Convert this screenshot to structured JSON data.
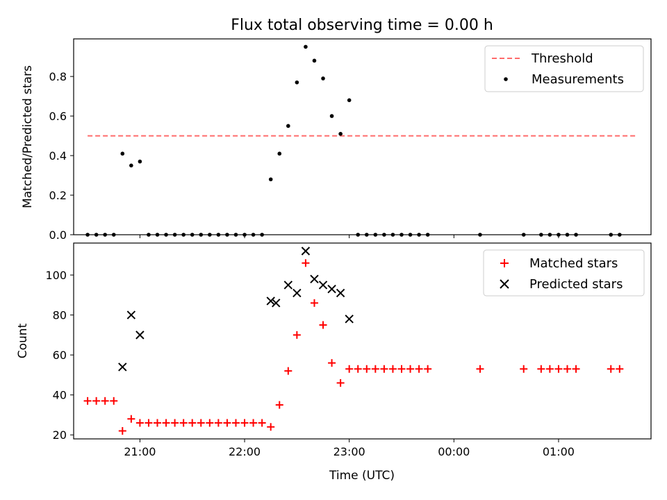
{
  "chart_data": [
    {
      "type": "scatter",
      "title": "Flux total observing time = 0.00 h",
      "xlabel": "",
      "ylabel": "Matched/Predicted stars",
      "xlim": [
        "20:22",
        "01:53"
      ],
      "ylim": [
        0,
        0.99
      ],
      "yticks": [
        "0.0",
        "0.2",
        "0.4",
        "0.6",
        "0.8"
      ],
      "grid": false,
      "legend_position": "upper right",
      "threshold": {
        "name": "Threshold",
        "value": 0.5,
        "x_start": "20:30",
        "x_end": "01:45",
        "color": "#ff6b6b",
        "style": "dashed"
      },
      "series": [
        {
          "name": "Measurements",
          "color": "#000000",
          "marker": "dot",
          "points": [
            [
              "20:30",
              0.0
            ],
            [
              "20:35",
              0.0
            ],
            [
              "20:40",
              0.0
            ],
            [
              "20:45",
              0.0
            ],
            [
              "20:50",
              0.41
            ],
            [
              "20:55",
              0.35
            ],
            [
              "21:00",
              0.37
            ],
            [
              "21:05",
              0.0
            ],
            [
              "21:10",
              0.0
            ],
            [
              "21:15",
              0.0
            ],
            [
              "21:20",
              0.0
            ],
            [
              "21:25",
              0.0
            ],
            [
              "21:30",
              0.0
            ],
            [
              "21:35",
              0.0
            ],
            [
              "21:40",
              0.0
            ],
            [
              "21:45",
              0.0
            ],
            [
              "21:50",
              0.0
            ],
            [
              "21:55",
              0.0
            ],
            [
              "22:00",
              0.0
            ],
            [
              "22:05",
              0.0
            ],
            [
              "22:10",
              0.0
            ],
            [
              "22:15",
              0.28
            ],
            [
              "22:20",
              0.41
            ],
            [
              "22:25",
              0.55
            ],
            [
              "22:30",
              0.77
            ],
            [
              "22:35",
              0.95
            ],
            [
              "22:40",
              0.88
            ],
            [
              "22:45",
              0.79
            ],
            [
              "22:50",
              0.6
            ],
            [
              "22:55",
              0.51
            ],
            [
              "23:00",
              0.68
            ],
            [
              "23:05",
              0.0
            ],
            [
              "23:10",
              0.0
            ],
            [
              "23:15",
              0.0
            ],
            [
              "23:20",
              0.0
            ],
            [
              "23:25",
              0.0
            ],
            [
              "23:30",
              0.0
            ],
            [
              "23:35",
              0.0
            ],
            [
              "23:40",
              0.0
            ],
            [
              "23:45",
              0.0
            ],
            [
              "00:15",
              0.0
            ],
            [
              "00:40",
              0.0
            ],
            [
              "00:50",
              0.0
            ],
            [
              "00:55",
              0.0
            ],
            [
              "01:00",
              0.0
            ],
            [
              "01:05",
              0.0
            ],
            [
              "01:10",
              0.0
            ],
            [
              "01:30",
              0.0
            ],
            [
              "01:35",
              0.0
            ]
          ]
        }
      ]
    },
    {
      "type": "scatter",
      "title": "",
      "xlabel": "Time (UTC)",
      "ylabel": "Count",
      "xlim": [
        "20:22",
        "01:53"
      ],
      "ylim": [
        18,
        116
      ],
      "yticks": [
        "20",
        "40",
        "60",
        "80",
        "100"
      ],
      "xticks": [
        "21:00",
        "22:00",
        "23:00",
        "00:00",
        "01:00"
      ],
      "grid": false,
      "legend_position": "upper right",
      "series": [
        {
          "name": "Matched stars",
          "color": "#ff0000",
          "marker": "plus",
          "points": [
            [
              "20:30",
              37
            ],
            [
              "20:35",
              37
            ],
            [
              "20:40",
              37
            ],
            [
              "20:45",
              37
            ],
            [
              "20:50",
              22
            ],
            [
              "20:55",
              28
            ],
            [
              "21:00",
              26
            ],
            [
              "21:05",
              26
            ],
            [
              "21:10",
              26
            ],
            [
              "21:15",
              26
            ],
            [
              "21:20",
              26
            ],
            [
              "21:25",
              26
            ],
            [
              "21:30",
              26
            ],
            [
              "21:35",
              26
            ],
            [
              "21:40",
              26
            ],
            [
              "21:45",
              26
            ],
            [
              "21:50",
              26
            ],
            [
              "21:55",
              26
            ],
            [
              "22:00",
              26
            ],
            [
              "22:05",
              26
            ],
            [
              "22:10",
              26
            ],
            [
              "22:15",
              24
            ],
            [
              "22:20",
              35
            ],
            [
              "22:25",
              52
            ],
            [
              "22:30",
              70
            ],
            [
              "22:35",
              106
            ],
            [
              "22:40",
              86
            ],
            [
              "22:45",
              75
            ],
            [
              "22:50",
              56
            ],
            [
              "22:55",
              46
            ],
            [
              "23:00",
              53
            ],
            [
              "23:05",
              53
            ],
            [
              "23:10",
              53
            ],
            [
              "23:15",
              53
            ],
            [
              "23:20",
              53
            ],
            [
              "23:25",
              53
            ],
            [
              "23:30",
              53
            ],
            [
              "23:35",
              53
            ],
            [
              "23:40",
              53
            ],
            [
              "23:45",
              53
            ],
            [
              "00:15",
              53
            ],
            [
              "00:40",
              53
            ],
            [
              "00:50",
              53
            ],
            [
              "00:55",
              53
            ],
            [
              "01:00",
              53
            ],
            [
              "01:05",
              53
            ],
            [
              "01:10",
              53
            ],
            [
              "01:30",
              53
            ],
            [
              "01:35",
              53
            ]
          ]
        },
        {
          "name": "Predicted stars",
          "color": "#000000",
          "marker": "x",
          "points": [
            [
              "20:50",
              54
            ],
            [
              "20:55",
              80
            ],
            [
              "21:00",
              70
            ],
            [
              "22:15",
              87
            ],
            [
              "22:18",
              86
            ],
            [
              "22:25",
              95
            ],
            [
              "22:30",
              91
            ],
            [
              "22:35",
              112
            ],
            [
              "22:40",
              98
            ],
            [
              "22:45",
              95
            ],
            [
              "22:50",
              93
            ],
            [
              "22:55",
              91
            ],
            [
              "23:00",
              78
            ]
          ]
        }
      ]
    }
  ]
}
